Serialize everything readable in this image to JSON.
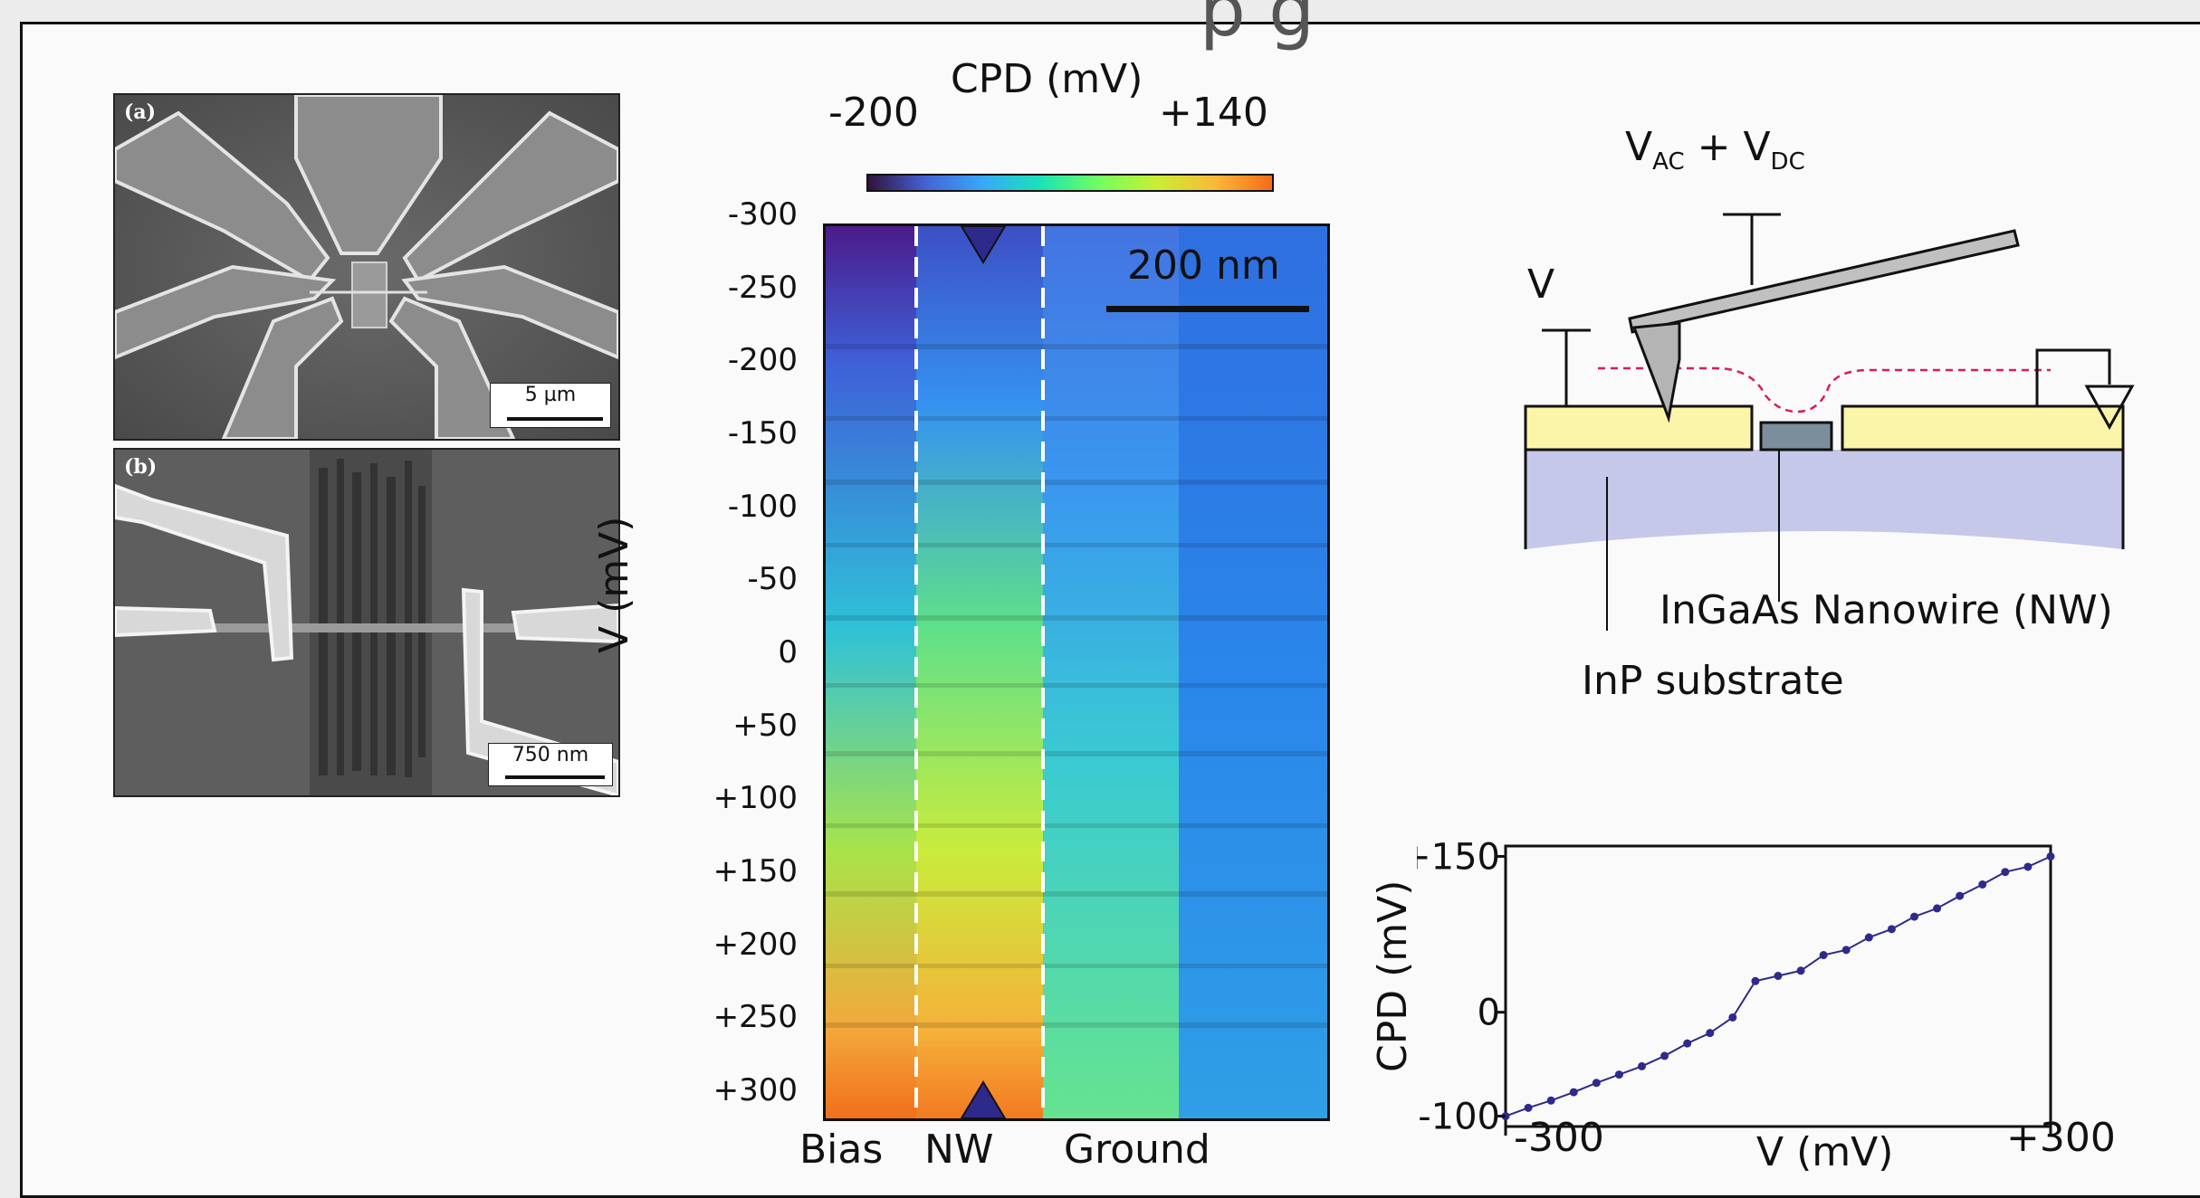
{
  "figure": {
    "title_fragment": "p          g",
    "panel_a": {
      "tag": "(a)",
      "scale_bar": "5 µm"
    },
    "panel_b": {
      "tag": "(b)",
      "scale_bar": "750 nm"
    },
    "sweep_map": {
      "colorbar_title": "CPD (mV)",
      "colorbar_min": "-200",
      "colorbar_max": "+140",
      "scale_bar": "200 nm",
      "y_axis_label": "V (mV)",
      "y_ticks": [
        "-300",
        "-250",
        "-200",
        "-150",
        "-100",
        "-50",
        "0",
        "+50",
        "+100",
        "+150",
        "+200",
        "+250",
        "+300"
      ],
      "x_labels": [
        "Bias",
        "NW",
        "Ground"
      ],
      "colormap": [
        "#30123b",
        "#4662d7",
        "#36aaf9",
        "#1ae4b6",
        "#72fe5e",
        "#c8ef34",
        "#faba39",
        "#f66b19"
      ],
      "dashed_line_color": "#ffffff",
      "marker_color": "#2e2a8c"
    },
    "schematic": {
      "tip_label": "V",
      "tip_label_sub1": "AC",
      "tip_label_plus": "+ V",
      "tip_label_sub2": "DC",
      "bias_label": "V",
      "nanowire_label": "InGaAs Nanowire (NW)",
      "substrate_label": "InP substrate",
      "electrode_color": "#faf5a8",
      "nanowire_color": "#7b8e9c",
      "substrate_color": "#c5c8e8",
      "potential_line_color": "#d81b60"
    }
  },
  "chart_data": {
    "type": "scatter",
    "x": [
      -300,
      -275,
      -250,
      -225,
      -200,
      -175,
      -150,
      -125,
      -100,
      -75,
      -50,
      -25,
      0,
      25,
      50,
      75,
      100,
      125,
      150,
      175,
      200,
      225,
      250,
      275,
      300
    ],
    "y": [
      -100,
      -92,
      -85,
      -77,
      -68,
      -60,
      -52,
      -42,
      -30,
      -20,
      -5,
      30,
      35,
      40,
      55,
      60,
      72,
      80,
      92,
      100,
      112,
      123,
      135,
      140,
      150
    ],
    "xlabel": "V (mV)",
    "ylabel": "CPD (mV)",
    "xticks": [
      "-300",
      "+300"
    ],
    "yticks": [
      "-100",
      "0",
      "+150"
    ],
    "xlim": [
      -300,
      300
    ],
    "ylim": [
      -110,
      160
    ],
    "series_color": "#2e2a8c"
  }
}
